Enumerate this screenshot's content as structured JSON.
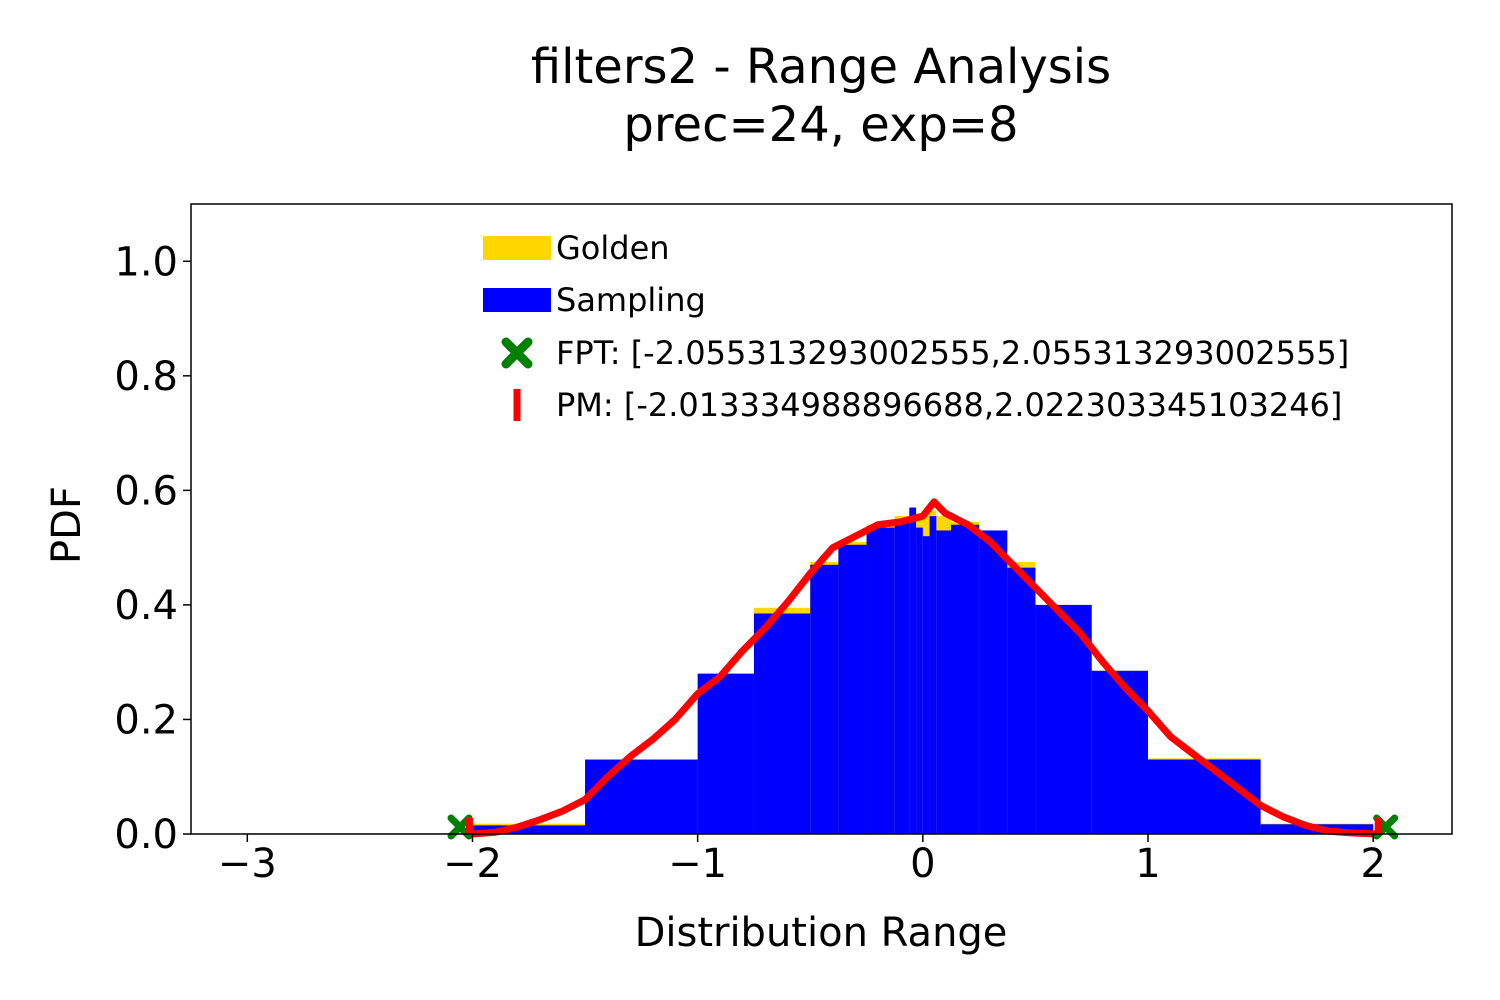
{
  "chart_data": {
    "type": "bar",
    "title_line1": "filters2 - Range Analysis",
    "title_line2": "prec=24, exp=8",
    "xlabel": "Distribution Range",
    "ylabel": "PDF",
    "xlim": [
      -3.25,
      2.35
    ],
    "ylim": [
      0,
      1.1
    ],
    "xticks": [
      -3,
      -2,
      -1,
      0,
      1,
      2
    ],
    "xtick_labels": [
      "−3",
      "−2",
      "−1",
      "0",
      "1",
      "2"
    ],
    "yticks": [
      0.0,
      0.2,
      0.4,
      0.6,
      0.8,
      1.0
    ],
    "ytick_labels": [
      "0.0",
      "0.2",
      "0.4",
      "0.6",
      "0.8",
      "1.0"
    ],
    "grid": false,
    "legend_position": "top-center",
    "series": [
      {
        "name": "Golden",
        "color": "#ffd700",
        "kind": "histogram",
        "bins": [
          {
            "x0": -3.0,
            "x1": -2.0,
            "y": 0.0
          },
          {
            "x0": -2.0,
            "x1": -1.5,
            "y": 0.018
          },
          {
            "x0": -1.5,
            "x1": -1.0,
            "y": 0.13
          },
          {
            "x0": -1.0,
            "x1": -0.75,
            "y": 0.28
          },
          {
            "x0": -0.75,
            "x1": -0.5,
            "y": 0.395
          },
          {
            "x0": -0.5,
            "x1": -0.375,
            "y": 0.475
          },
          {
            "x0": -0.375,
            "x1": -0.25,
            "y": 0.51
          },
          {
            "x0": -0.25,
            "x1": -0.125,
            "y": 0.54
          },
          {
            "x0": -0.125,
            "x1": -0.06,
            "y": 0.555
          },
          {
            "x0": -0.06,
            "x1": 0.0,
            "y": 0.56
          },
          {
            "x0": 0.0,
            "x1": 0.06,
            "y": 0.565
          },
          {
            "x0": 0.06,
            "x1": 0.125,
            "y": 0.555
          },
          {
            "x0": 0.125,
            "x1": 0.25,
            "y": 0.545
          },
          {
            "x0": 0.25,
            "x1": 0.375,
            "y": 0.53
          },
          {
            "x0": 0.375,
            "x1": 0.5,
            "y": 0.475
          },
          {
            "x0": 0.5,
            "x1": 0.75,
            "y": 0.4
          },
          {
            "x0": 0.75,
            "x1": 1.0,
            "y": 0.285
          },
          {
            "x0": 1.0,
            "x1": 1.5,
            "y": 0.132
          },
          {
            "x0": 1.5,
            "x1": 2.0,
            "y": 0.018
          }
        ]
      },
      {
        "name": "Sampling",
        "color": "#0000ff",
        "kind": "histogram",
        "bins": [
          {
            "x0": -3.0,
            "x1": -2.0,
            "y": 0.001
          },
          {
            "x0": -2.0,
            "x1": -1.5,
            "y": 0.015
          },
          {
            "x0": -1.5,
            "x1": -1.0,
            "y": 0.13
          },
          {
            "x0": -1.0,
            "x1": -0.75,
            "y": 0.28
          },
          {
            "x0": -0.75,
            "x1": -0.5,
            "y": 0.385
          },
          {
            "x0": -0.5,
            "x1": -0.375,
            "y": 0.47
          },
          {
            "x0": -0.375,
            "x1": -0.25,
            "y": 0.505
          },
          {
            "x0": -0.25,
            "x1": -0.125,
            "y": 0.535
          },
          {
            "x0": -0.125,
            "x1": -0.06,
            "y": 0.55
          },
          {
            "x0": -0.06,
            "x1": -0.03,
            "y": 0.57
          },
          {
            "x0": -0.03,
            "x1": 0.0,
            "y": 0.535
          },
          {
            "x0": 0.0,
            "x1": 0.03,
            "y": 0.52
          },
          {
            "x0": 0.03,
            "x1": 0.06,
            "y": 0.555
          },
          {
            "x0": 0.06,
            "x1": 0.125,
            "y": 0.53
          },
          {
            "x0": 0.125,
            "x1": 0.25,
            "y": 0.54
          },
          {
            "x0": 0.25,
            "x1": 0.375,
            "y": 0.53
          },
          {
            "x0": 0.375,
            "x1": 0.5,
            "y": 0.465
          },
          {
            "x0": 0.5,
            "x1": 0.75,
            "y": 0.4
          },
          {
            "x0": 0.75,
            "x1": 1.0,
            "y": 0.285
          },
          {
            "x0": 1.0,
            "x1": 1.5,
            "y": 0.13
          },
          {
            "x0": 1.5,
            "x1": 2.0,
            "y": 0.017
          }
        ]
      },
      {
        "name": "PM",
        "color": "#ff0000",
        "kind": "line",
        "x": [
          -2.0,
          -1.9,
          -1.8,
          -1.7,
          -1.6,
          -1.5,
          -1.4,
          -1.3,
          -1.2,
          -1.1,
          -1.0,
          -0.9,
          -0.8,
          -0.7,
          -0.6,
          -0.5,
          -0.4,
          -0.3,
          -0.2,
          -0.1,
          0.0,
          0.05,
          0.1,
          0.2,
          0.3,
          0.4,
          0.5,
          0.6,
          0.7,
          0.8,
          0.9,
          1.0,
          1.1,
          1.2,
          1.3,
          1.4,
          1.5,
          1.6,
          1.7,
          1.8,
          1.9,
          2.02
        ],
        "y": [
          0.0,
          0.003,
          0.012,
          0.025,
          0.04,
          0.06,
          0.1,
          0.135,
          0.165,
          0.2,
          0.245,
          0.275,
          0.32,
          0.36,
          0.405,
          0.455,
          0.5,
          0.52,
          0.54,
          0.545,
          0.555,
          0.58,
          0.56,
          0.54,
          0.51,
          0.47,
          0.43,
          0.39,
          0.35,
          0.3,
          0.255,
          0.215,
          0.17,
          0.14,
          0.11,
          0.08,
          0.05,
          0.03,
          0.015,
          0.005,
          0.002,
          0.0
        ]
      }
    ],
    "legend": [
      {
        "label": "Golden",
        "marker": "patch",
        "color": "#ffd700"
      },
      {
        "label": "Sampling",
        "marker": "patch",
        "color": "#0000ff"
      },
      {
        "label": "FPT: [-2.055313293002555,2.055313293002555]",
        "marker": "x-marker",
        "color": "#008000"
      },
      {
        "label": "PM: [-2.013334988896688,2.022303345103246]",
        "marker": "vbar-marker",
        "color": "#ff0000"
      }
    ],
    "fpt_range": [
      -2.055313293002555,
      2.055313293002555
    ],
    "pm_range": [
      -2.013334988896688,
      2.022303345103246
    ]
  }
}
